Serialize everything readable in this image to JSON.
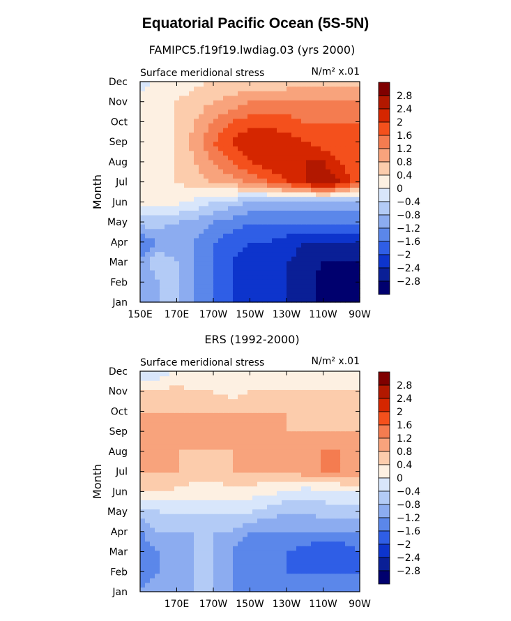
{
  "figure_title": "Equatorial Pacific Ocean (5S-5N)",
  "colorbar": {
    "labels": [
      "2.8",
      "2.4",
      "2",
      "1.6",
      "1.2",
      "0.8",
      "0.4",
      "0",
      "−0.4",
      "−0.8",
      "−1.2",
      "−1.6",
      "−2",
      "−2.4",
      "−2.8"
    ],
    "colors": [
      "#7f0000",
      "#b21800",
      "#d52600",
      "#f4501c",
      "#f47c50",
      "#f8a37c",
      "#fcccac",
      "#fdf0e2",
      "#d8e6fb",
      "#b3cbf6",
      "#8cacf0",
      "#5b87ea",
      "#2f5ee6",
      "#0d34cc",
      "#0a1f96",
      "#00006e"
    ]
  },
  "chart_data": [
    {
      "type": "heatmap",
      "title": "FAMIPC5.f19f19.lwdiag.03 (yrs 2000)",
      "subtitle_left": "Surface meridional stress",
      "subtitle_right": "N/m² x.01",
      "ylabel": "Month",
      "x_ticks": [
        "150E",
        "170E",
        "170W",
        "150W",
        "130W",
        "110W",
        "90W"
      ],
      "y_ticks": [
        "Jan",
        "Feb",
        "Mar",
        "Apr",
        "May",
        "Jun",
        "Jul",
        "Aug",
        "Sep",
        "Oct",
        "Nov",
        "Dec"
      ],
      "x": [
        150,
        160,
        170,
        180,
        190,
        200,
        210,
        220,
        230,
        240,
        250,
        260,
        270
      ],
      "z": [
        [
          -1.2,
          -0.8,
          -0.8,
          -1.2,
          -1.6,
          -2.0,
          -2.4,
          -2.4,
          -2.4,
          -2.6,
          -3.0,
          -3.0,
          -3.0
        ],
        [
          -1.2,
          -0.8,
          -0.8,
          -1.2,
          -1.6,
          -2.0,
          -2.4,
          -2.4,
          -2.4,
          -2.6,
          -3.0,
          -3.0,
          -3.0
        ],
        [
          -1.2,
          -0.4,
          -0.8,
          -1.2,
          -1.6,
          -2.0,
          -2.2,
          -2.4,
          -2.4,
          -2.6,
          -2.8,
          -2.8,
          -2.8
        ],
        [
          -1.6,
          -1.2,
          -1.2,
          -1.2,
          -1.6,
          -1.8,
          -2.0,
          -2.0,
          -2.2,
          -2.4,
          -2.4,
          -2.4,
          -2.4
        ],
        [
          -0.6,
          -0.6,
          -0.8,
          -1.0,
          -1.2,
          -1.4,
          -1.6,
          -1.6,
          -1.6,
          -1.6,
          -1.6,
          -1.6,
          -1.6
        ],
        [
          0.2,
          0.2,
          0.1,
          -0.1,
          -0.4,
          -0.6,
          -0.8,
          -1.0,
          -1.0,
          -1.0,
          -1.0,
          -1.0,
          -1.0
        ],
        [
          0.2,
          0.3,
          0.4,
          0.6,
          0.8,
          1.0,
          1.2,
          1.6,
          2.0,
          2.4,
          2.8,
          2.4,
          1.6
        ],
        [
          0.2,
          0.3,
          0.4,
          0.8,
          1.2,
          1.6,
          2.0,
          2.2,
          2.4,
          2.4,
          2.4,
          2.0,
          1.6
        ],
        [
          0.2,
          0.3,
          0.4,
          1.0,
          1.6,
          2.0,
          2.4,
          2.4,
          2.2,
          2.0,
          1.8,
          1.6,
          1.6
        ],
        [
          0.2,
          0.3,
          0.4,
          0.8,
          1.2,
          1.6,
          1.8,
          1.8,
          1.8,
          1.6,
          1.6,
          1.6,
          1.6
        ],
        [
          0.2,
          0.3,
          0.4,
          0.6,
          0.8,
          1.0,
          1.2,
          1.2,
          1.2,
          1.2,
          1.2,
          1.2,
          1.2
        ],
        [
          -0.2,
          0.1,
          0.2,
          0.3,
          0.4,
          0.4,
          0.5,
          0.5,
          0.6,
          0.6,
          0.6,
          0.6,
          0.6
        ]
      ],
      "zlim": [
        -3.2,
        3.2
      ]
    },
    {
      "type": "heatmap",
      "title": "ERS (1992-2000)",
      "subtitle_left": "Surface meridional stress",
      "subtitle_right": "N/m² x.01",
      "ylabel": "Month",
      "x_ticks": [
        "",
        "170E",
        "170W",
        "150W",
        "130W",
        "110W",
        "90W"
      ],
      "y_ticks": [
        "Jan",
        "Feb",
        "Mar",
        "Apr",
        "May",
        "Jun",
        "Jul",
        "Aug",
        "Sep",
        "Oct",
        "Nov",
        "Dec"
      ],
      "x": [
        150,
        160,
        170,
        180,
        190,
        200,
        210,
        220,
        230,
        240,
        250,
        260,
        270
      ],
      "z": [
        [
          -1.2,
          -0.8,
          -0.8,
          -0.8,
          -0.8,
          -1.2,
          -1.2,
          -1.2,
          -1.2,
          -1.2,
          -1.2,
          -1.2,
          -1.2
        ],
        [
          -1.6,
          -1.2,
          -1.2,
          -0.8,
          -0.8,
          -1.2,
          -1.6,
          -1.6,
          -1.6,
          -1.6,
          -1.6,
          -1.6,
          -1.6
        ],
        [
          -1.6,
          -1.2,
          -1.2,
          -0.8,
          -0.8,
          -1.2,
          -1.6,
          -1.6,
          -1.6,
          -1.8,
          -2.0,
          -2.0,
          -1.6
        ],
        [
          -1.2,
          -0.8,
          -0.8,
          -0.8,
          -0.8,
          -0.8,
          -1.2,
          -1.2,
          -1.2,
          -1.2,
          -1.2,
          -1.2,
          -1.2
        ],
        [
          -0.6,
          -0.4,
          -0.4,
          -0.4,
          -0.4,
          -0.4,
          -0.4,
          -0.6,
          -0.8,
          -0.8,
          -0.6,
          -0.6,
          -0.6
        ],
        [
          0.4,
          0.4,
          0.3,
          0.2,
          0.2,
          0.2,
          0.2,
          0.1,
          0.0,
          -0.2,
          -0.2,
          -0.1,
          0.0
        ],
        [
          0.8,
          0.8,
          0.8,
          0.6,
          0.6,
          0.8,
          0.8,
          0.8,
          0.8,
          1.0,
          1.2,
          1.2,
          1.2
        ],
        [
          1.0,
          0.8,
          0.8,
          0.8,
          0.8,
          0.8,
          0.8,
          0.8,
          0.8,
          0.8,
          1.2,
          1.2,
          1.0
        ],
        [
          1.2,
          0.8,
          0.8,
          0.8,
          0.8,
          0.8,
          0.8,
          0.8,
          0.8,
          0.8,
          0.8,
          0.8,
          0.8
        ],
        [
          0.8,
          0.8,
          0.8,
          0.8,
          0.8,
          0.8,
          0.8,
          0.8,
          0.8,
          0.6,
          0.6,
          0.6,
          0.8
        ],
        [
          0.4,
          0.4,
          0.6,
          0.4,
          0.4,
          0.2,
          0.4,
          0.4,
          0.4,
          0.4,
          0.4,
          0.4,
          0.4
        ],
        [
          -0.4,
          -0.2,
          0.0,
          0.0,
          0.1,
          0.1,
          0.0,
          0.0,
          0.0,
          0.0,
          0.0,
          0.0,
          0.0
        ]
      ],
      "zlim": [
        -3.2,
        3.2
      ]
    }
  ]
}
